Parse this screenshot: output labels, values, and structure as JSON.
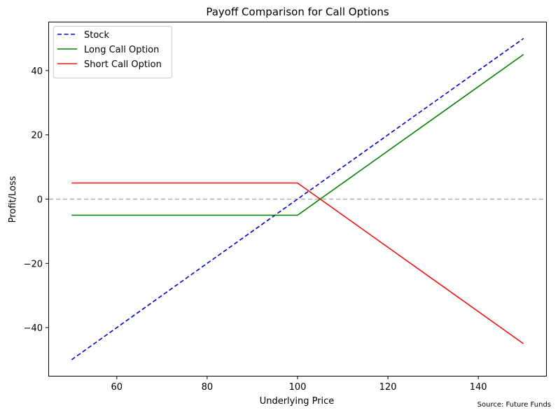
{
  "chart_data": {
    "type": "line",
    "title": "Payoff Comparison for Call Options",
    "xlabel": "Underlying Price",
    "ylabel": "Profit/Loss",
    "xlim": [
      45,
      155
    ],
    "ylim": [
      -55,
      55
    ],
    "xticks": [
      60,
      80,
      100,
      120,
      140
    ],
    "yticks": [
      -40,
      -20,
      0,
      20,
      40
    ],
    "ytick_labels": [
      "−40",
      "−20",
      "0",
      "20",
      "40"
    ],
    "xtick_labels": [
      "60",
      "80",
      "100",
      "120",
      "140"
    ],
    "grid": false,
    "reference_line": {
      "y": 0,
      "style": "dashed",
      "color": "#b0b0b0"
    },
    "legend_position": "top-left",
    "series": [
      {
        "name": "Stock",
        "color": "#0000cc",
        "style": "dashed",
        "x": [
          50,
          150
        ],
        "y": [
          -50,
          50
        ]
      },
      {
        "name": "Long Call Option",
        "color": "#008000",
        "style": "solid",
        "x": [
          50,
          100,
          150
        ],
        "y": [
          -5,
          -5,
          45
        ]
      },
      {
        "name": "Short Call Option",
        "color": "#ee1111",
        "style": "solid",
        "x": [
          50,
          100,
          150
        ],
        "y": [
          5,
          5,
          -45
        ]
      }
    ],
    "source_note": "Source: Future Funds"
  }
}
